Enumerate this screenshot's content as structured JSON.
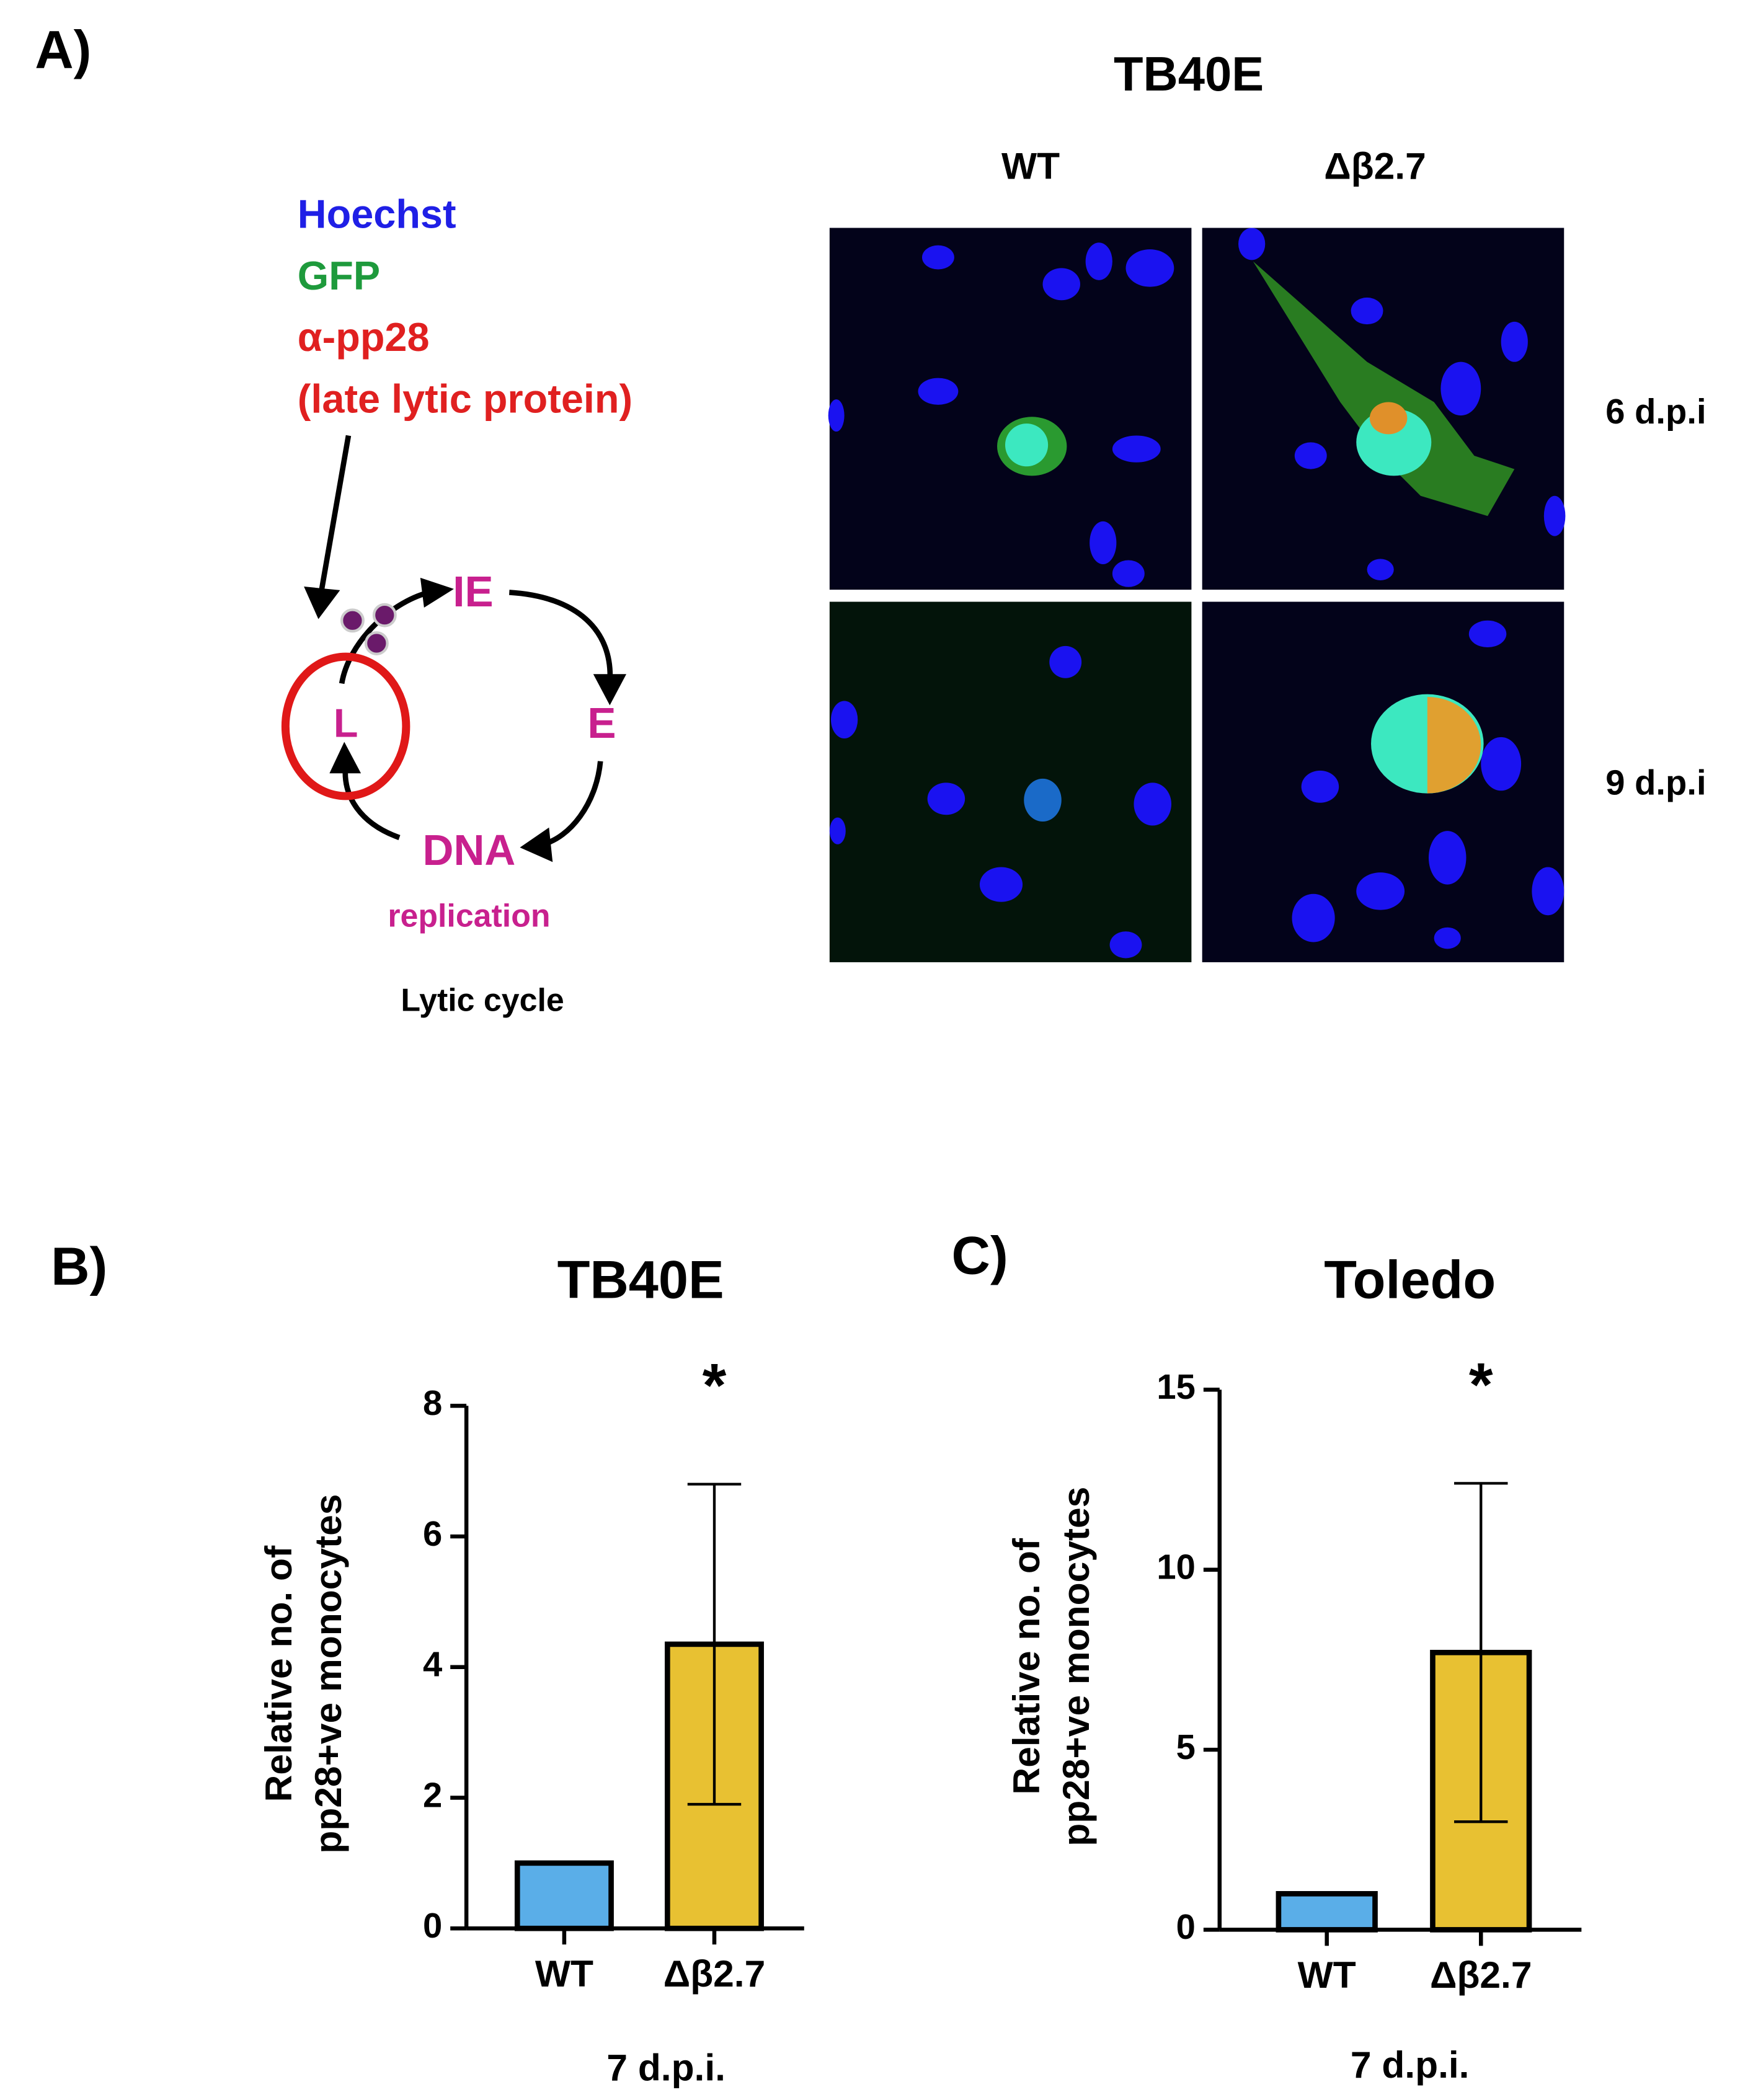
{
  "panel_a": {
    "label": "A)",
    "title": "TB40E",
    "columns": [
      "WT",
      "Δβ2.7"
    ],
    "rows": [
      "6 d.p.i",
      "9 d.p.i"
    ],
    "stains": [
      {
        "text": "Hoechst",
        "color": "#1f1fe6"
      },
      {
        "text": "GFP",
        "color": "#1e9a3c"
      },
      {
        "text": "α-pp28",
        "color": "#e02020"
      },
      {
        "text": "(late lytic protein)",
        "color": "#e02020"
      }
    ],
    "cycle": {
      "ie": "IE",
      "e": "E",
      "dna": "DNA",
      "replication": "replication",
      "l": "L",
      "caption": "Lytic cycle"
    }
  },
  "chart_data": [
    {
      "type": "bar",
      "panel_label": "B)",
      "title": "TB40E",
      "y_label": [
        "Relative no. of",
        "pp28+ve monocytes"
      ],
      "x_label": "7 d.p.i.",
      "categories": [
        "WT",
        "Δβ2.7"
      ],
      "values": [
        1,
        4.35
      ],
      "errors": [
        0,
        2.45
      ],
      "colors": [
        "#5aaee8",
        "#e8c132"
      ],
      "significance": "*",
      "ylim": [
        0,
        8
      ],
      "yticks": [
        0,
        2,
        4,
        6,
        8
      ]
    },
    {
      "type": "bar",
      "panel_label": "C)",
      "title": "Toledo",
      "y_label": [
        "Relative no. of",
        "pp28+ve monocytes"
      ],
      "x_label": "7 d.p.i.",
      "categories": [
        "WT",
        "Δβ2.7"
      ],
      "values": [
        1,
        7.7
      ],
      "errors": [
        0,
        4.7
      ],
      "colors": [
        "#5aaee8",
        "#e8c132"
      ],
      "significance": "*",
      "ylim": [
        0,
        15
      ],
      "yticks": [
        0,
        5,
        10,
        15
      ]
    }
  ]
}
